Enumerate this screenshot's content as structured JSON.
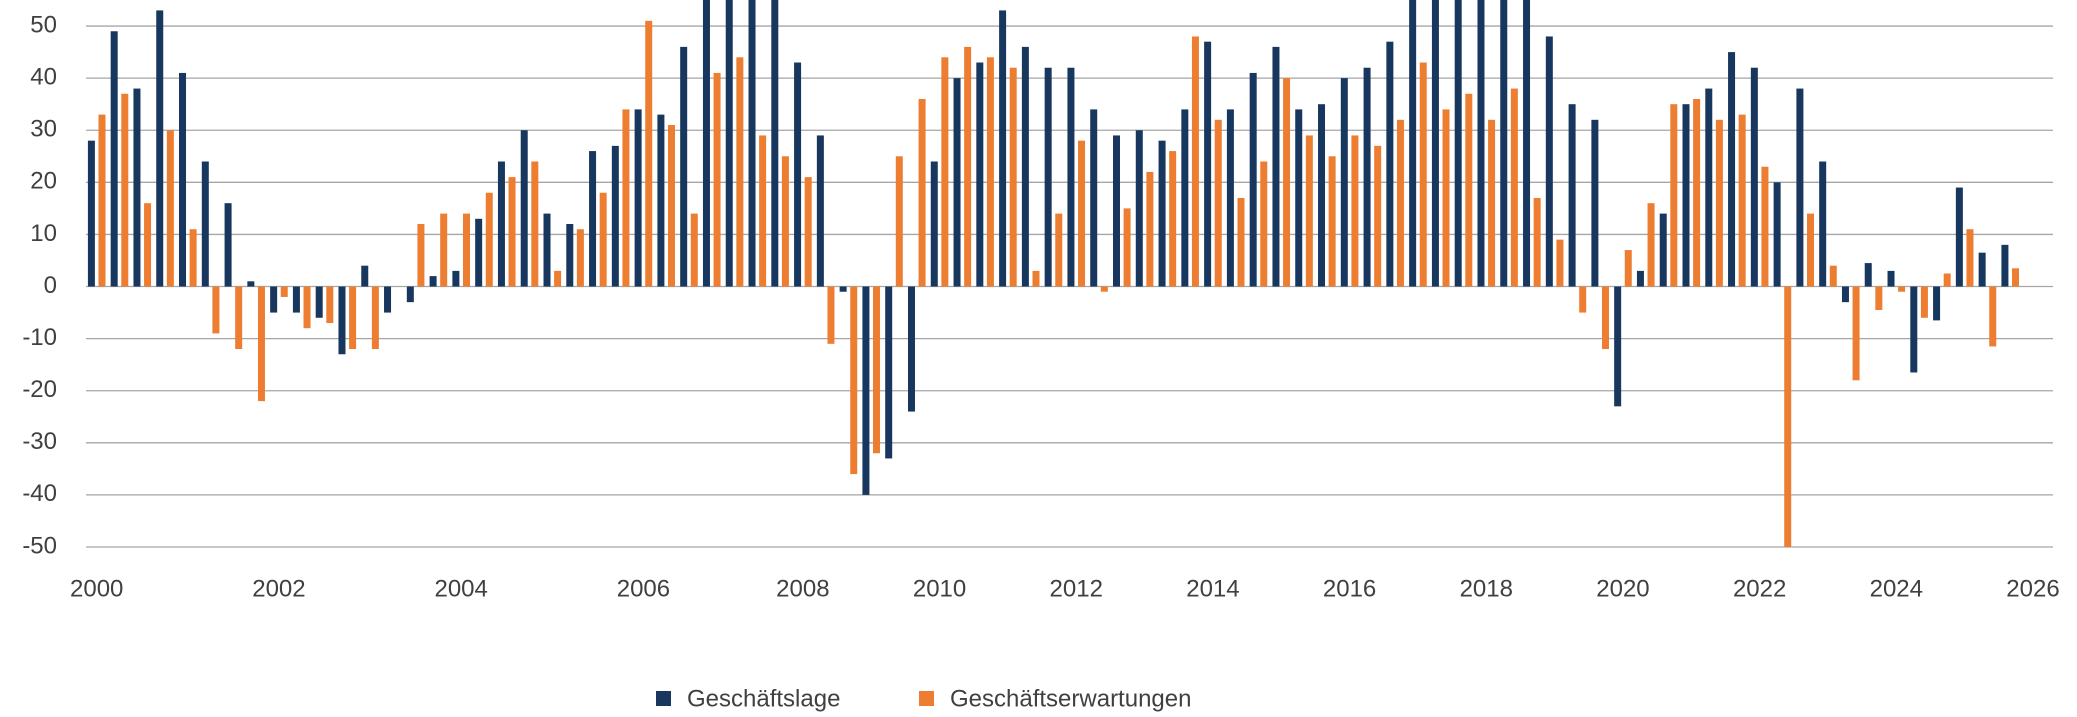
{
  "chart_data": {
    "type": "bar",
    "categories": [
      "2000",
      null,
      null,
      null,
      null,
      null,
      null,
      null,
      "2002",
      null,
      null,
      null,
      null,
      null,
      null,
      null,
      "2004",
      null,
      null,
      null,
      null,
      null,
      null,
      null,
      "2006",
      null,
      null,
      null,
      null,
      null,
      null,
      "2008",
      null,
      null,
      null,
      null,
      null,
      "2010",
      null,
      null,
      null,
      null,
      null,
      "2012",
      null,
      null,
      null,
      null,
      null,
      "2014",
      null,
      null,
      null,
      null,
      null,
      "2016",
      null,
      null,
      null,
      null,
      null,
      "2018",
      null,
      null,
      null,
      null,
      null,
      "2020",
      null,
      null,
      null,
      null,
      null,
      "2022",
      null,
      null,
      null,
      null,
      null,
      "2024",
      null,
      null,
      null,
      null,
      null,
      "2026"
    ],
    "series": [
      {
        "name": "Geschäftslage",
        "color": "#17375e",
        "values": [
          28,
          49,
          38,
          53,
          41,
          24,
          16,
          1,
          -5,
          -5,
          -6,
          -13,
          4,
          -5,
          -3,
          2,
          3,
          13,
          24,
          30,
          14,
          12,
          26,
          27,
          34,
          33,
          46,
          56,
          56,
          56,
          56,
          43,
          29,
          -1,
          -40,
          -33,
          -24,
          24,
          40,
          43,
          53,
          46,
          42,
          42,
          34,
          29,
          30,
          28,
          34,
          47,
          34,
          41,
          46,
          34,
          35,
          40,
          42,
          47,
          56,
          56,
          56,
          56,
          56,
          56,
          48,
          35,
          32,
          -23,
          3,
          14,
          35,
          38,
          45,
          42,
          20,
          38,
          24,
          -3,
          4.5,
          3,
          -16.5,
          -6.5,
          19,
          6.5,
          8,
          null
        ]
      },
      {
        "name": "Geschäftserwartungen",
        "color": "#ed7d31",
        "values": [
          33,
          37,
          16,
          30,
          11,
          -9,
          -12,
          -22,
          -2,
          -8,
          -7,
          -12,
          -12,
          0,
          12,
          14,
          14,
          18,
          21,
          24,
          3,
          11,
          18,
          34,
          51,
          31,
          14,
          41,
          44,
          29,
          25,
          21,
          -11,
          -36,
          -32,
          25,
          36,
          44,
          46,
          44,
          42,
          3,
          14,
          28,
          -1,
          15,
          22,
          26,
          48,
          32,
          17,
          24,
          40,
          29,
          25,
          29,
          27,
          32,
          43,
          34,
          37,
          32,
          38,
          17,
          9,
          -5,
          -12,
          7,
          16,
          35,
          36,
          32,
          33,
          23,
          -50,
          14,
          4,
          -18,
          -4.5,
          -1,
          -6,
          2.5,
          11,
          -11.5,
          3.5,
          null
        ]
      }
    ],
    "ylim": [
      -50,
      55
    ],
    "yticks": [
      -50,
      -40,
      -30,
      -20,
      -10,
      0,
      10,
      20,
      30,
      40,
      50
    ],
    "grid": true,
    "legend": "bottom"
  }
}
